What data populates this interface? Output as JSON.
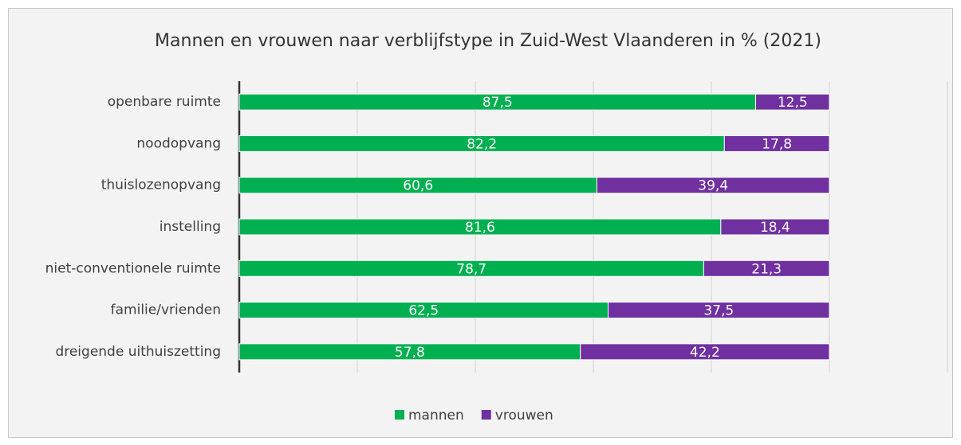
{
  "chart_data": {
    "type": "stacked-barh",
    "title": "Mannen en vrouwen naar verblijfstype in Zuid-West Vlaanderen in % (2021)",
    "categories": [
      "openbare ruimte",
      "noodopvang",
      "thuislozenopvang",
      "instelling",
      "niet-conventionele ruimte",
      "familie/vrienden",
      "dreigende uithuiszetting"
    ],
    "series": [
      {
        "name": "mannen",
        "color": "#00b050",
        "values": [
          87.5,
          82.2,
          60.6,
          81.6,
          78.7,
          62.5,
          57.8
        ],
        "value_labels": [
          "87,5",
          "82,2",
          "60,6",
          "81,6",
          "78,7",
          "62,5",
          "57,8"
        ]
      },
      {
        "name": "vrouwen",
        "color": "#7030a0",
        "values": [
          12.5,
          17.8,
          39.4,
          18.4,
          21.3,
          37.5,
          42.2
        ],
        "value_labels": [
          "12,5",
          "17,8",
          "39,4",
          "18,4",
          "21,3",
          "37,5",
          "42,2"
        ]
      }
    ],
    "xlim": [
      0,
      120
    ],
    "xticks": [
      0,
      20,
      40,
      60,
      80,
      100,
      120
    ],
    "grid": true,
    "legend": "bottom"
  }
}
